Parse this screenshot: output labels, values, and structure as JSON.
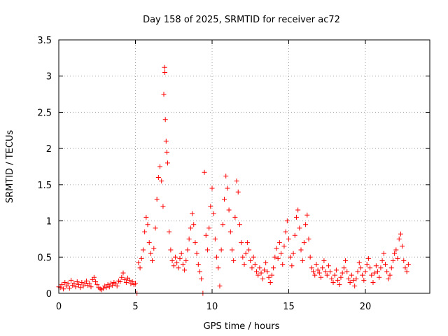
{
  "chart_data": {
    "type": "scatter",
    "title": "Day 158 of 2025, SRMTID for receiver ac72",
    "xlabel": "GPS time / hours",
    "ylabel": "SRMTID / TECUs",
    "xlim": [
      0,
      24.2
    ],
    "ylim": [
      0,
      3.5
    ],
    "xticks": [
      0,
      5,
      10,
      15,
      20
    ],
    "xtick_labels": [
      "0",
      "5",
      "10",
      "15",
      "20"
    ],
    "yticks": [
      0,
      0.5,
      1,
      1.5,
      2,
      2.5,
      3,
      3.5
    ],
    "ytick_labels": [
      "0",
      "0.5",
      "1",
      "1.5",
      "2",
      "2.5",
      "3",
      "3.5"
    ],
    "grid": true,
    "marker": "+",
    "color": "#ff0000",
    "series": [
      {
        "name": "SRMTID",
        "points": [
          [
            0.0,
            0.09
          ],
          [
            0.1,
            0.08
          ],
          [
            0.2,
            0.12
          ],
          [
            0.3,
            0.06
          ],
          [
            0.4,
            0.15
          ],
          [
            0.5,
            0.1
          ],
          [
            0.6,
            0.13
          ],
          [
            0.7,
            0.07
          ],
          [
            0.8,
            0.18
          ],
          [
            0.9,
            0.11
          ],
          [
            1.0,
            0.14
          ],
          [
            1.1,
            0.09
          ],
          [
            1.2,
            0.16
          ],
          [
            1.3,
            0.12
          ],
          [
            1.4,
            0.08
          ],
          [
            1.5,
            0.15
          ],
          [
            1.6,
            0.1
          ],
          [
            1.7,
            0.13
          ],
          [
            1.8,
            0.17
          ],
          [
            1.9,
            0.11
          ],
          [
            2.0,
            0.14
          ],
          [
            2.1,
            0.09
          ],
          [
            2.2,
            0.19
          ],
          [
            2.3,
            0.22
          ],
          [
            2.4,
            0.16
          ],
          [
            2.5,
            0.12
          ],
          [
            2.6,
            0.08
          ],
          [
            2.7,
            0.06
          ],
          [
            2.8,
            0.05
          ],
          [
            2.9,
            0.07
          ],
          [
            3.0,
            0.1
          ],
          [
            3.1,
            0.08
          ],
          [
            3.2,
            0.12
          ],
          [
            3.3,
            0.09
          ],
          [
            3.4,
            0.14
          ],
          [
            3.5,
            0.11
          ],
          [
            3.6,
            0.15
          ],
          [
            3.7,
            0.13
          ],
          [
            3.8,
            0.1
          ],
          [
            3.9,
            0.17
          ],
          [
            4.0,
            0.16
          ],
          [
            4.1,
            0.22
          ],
          [
            4.2,
            0.28
          ],
          [
            4.3,
            0.19
          ],
          [
            4.4,
            0.15
          ],
          [
            4.5,
            0.21
          ],
          [
            4.6,
            0.18
          ],
          [
            4.7,
            0.13
          ],
          [
            4.8,
            0.16
          ],
          [
            4.9,
            0.12
          ],
          [
            5.0,
            0.14
          ],
          [
            5.1,
            0.0
          ],
          [
            5.2,
            0.42
          ],
          [
            5.3,
            0.35
          ],
          [
            5.4,
            0.48
          ],
          [
            5.5,
            0.6
          ],
          [
            5.6,
            0.85
          ],
          [
            5.7,
            1.05
          ],
          [
            5.8,
            0.95
          ],
          [
            5.9,
            0.7
          ],
          [
            6.0,
            0.55
          ],
          [
            6.1,
            0.45
          ],
          [
            6.2,
            0.62
          ],
          [
            6.3,
            0.9
          ],
          [
            6.4,
            1.3
          ],
          [
            6.5,
            1.6
          ],
          [
            6.6,
            1.75
          ],
          [
            6.7,
            1.55
          ],
          [
            6.8,
            1.2
          ],
          [
            6.85,
            2.75
          ],
          [
            6.9,
            3.12
          ],
          [
            6.92,
            3.05
          ],
          [
            6.95,
            2.4
          ],
          [
            7.0,
            2.1
          ],
          [
            7.05,
            1.95
          ],
          [
            7.1,
            1.8
          ],
          [
            7.2,
            0.85
          ],
          [
            7.3,
            0.6
          ],
          [
            7.4,
            0.45
          ],
          [
            7.5,
            0.38
          ],
          [
            7.6,
            0.5
          ],
          [
            7.7,
            0.42
          ],
          [
            7.8,
            0.35
          ],
          [
            7.9,
            0.48
          ],
          [
            8.0,
            0.55
          ],
          [
            8.1,
            0.4
          ],
          [
            8.2,
            0.32
          ],
          [
            8.3,
            0.45
          ],
          [
            8.4,
            0.6
          ],
          [
            8.5,
            0.75
          ],
          [
            8.6,
            0.9
          ],
          [
            8.7,
            1.1
          ],
          [
            8.8,
            0.95
          ],
          [
            8.9,
            0.7
          ],
          [
            9.0,
            0.55
          ],
          [
            9.1,
            0.4
          ],
          [
            9.2,
            0.3
          ],
          [
            9.3,
            0.2
          ],
          [
            9.4,
            0.0
          ],
          [
            9.5,
            1.67
          ],
          [
            9.6,
            0.8
          ],
          [
            9.7,
            0.6
          ],
          [
            9.8,
            0.9
          ],
          [
            9.9,
            1.2
          ],
          [
            10.0,
            1.45
          ],
          [
            10.1,
            1.1
          ],
          [
            10.2,
            0.75
          ],
          [
            10.3,
            0.5
          ],
          [
            10.4,
            0.35
          ],
          [
            10.5,
            0.1
          ],
          [
            10.6,
            0.6
          ],
          [
            10.7,
            0.95
          ],
          [
            10.8,
            1.3
          ],
          [
            10.9,
            1.62
          ],
          [
            11.0,
            1.45
          ],
          [
            11.1,
            1.15
          ],
          [
            11.2,
            0.85
          ],
          [
            11.3,
            0.6
          ],
          [
            11.4,
            0.45
          ],
          [
            11.5,
            1.05
          ],
          [
            11.6,
            1.55
          ],
          [
            11.7,
            1.4
          ],
          [
            11.8,
            0.95
          ],
          [
            11.9,
            0.7
          ],
          [
            12.0,
            0.5
          ],
          [
            12.1,
            0.4
          ],
          [
            12.2,
            0.55
          ],
          [
            12.3,
            0.7
          ],
          [
            12.4,
            0.6
          ],
          [
            12.5,
            0.45
          ],
          [
            12.6,
            0.35
          ],
          [
            12.7,
            0.5
          ],
          [
            12.8,
            0.4
          ],
          [
            12.9,
            0.3
          ],
          [
            13.0,
            0.25
          ],
          [
            13.1,
            0.35
          ],
          [
            13.2,
            0.28
          ],
          [
            13.3,
            0.2
          ],
          [
            13.4,
            0.32
          ],
          [
            13.5,
            0.42
          ],
          [
            13.6,
            0.3
          ],
          [
            13.7,
            0.22
          ],
          [
            13.8,
            0.15
          ],
          [
            13.9,
            0.25
          ],
          [
            14.0,
            0.35
          ],
          [
            14.1,
            0.5
          ],
          [
            14.2,
            0.62
          ],
          [
            14.3,
            0.48
          ],
          [
            14.4,
            0.7
          ],
          [
            14.5,
            0.55
          ],
          [
            14.6,
            0.4
          ],
          [
            14.7,
            0.65
          ],
          [
            14.8,
            0.85
          ],
          [
            14.9,
            1.0
          ],
          [
            15.0,
            0.75
          ],
          [
            15.1,
            0.5
          ],
          [
            15.2,
            0.38
          ],
          [
            15.3,
            0.55
          ],
          [
            15.4,
            0.8
          ],
          [
            15.5,
            1.05
          ],
          [
            15.6,
            1.15
          ],
          [
            15.7,
            0.9
          ],
          [
            15.8,
            0.6
          ],
          [
            15.9,
            0.45
          ],
          [
            16.0,
            0.7
          ],
          [
            16.1,
            0.95
          ],
          [
            16.2,
            1.08
          ],
          [
            16.3,
            0.75
          ],
          [
            16.4,
            0.5
          ],
          [
            16.5,
            0.35
          ],
          [
            16.6,
            0.3
          ],
          [
            16.7,
            0.25
          ],
          [
            16.8,
            0.4
          ],
          [
            16.9,
            0.32
          ],
          [
            17.0,
            0.28
          ],
          [
            17.1,
            0.22
          ],
          [
            17.2,
            0.35
          ],
          [
            17.3,
            0.45
          ],
          [
            17.4,
            0.3
          ],
          [
            17.5,
            0.25
          ],
          [
            17.6,
            0.38
          ],
          [
            17.7,
            0.3
          ],
          [
            17.8,
            0.2
          ],
          [
            17.9,
            0.15
          ],
          [
            18.0,
            0.25
          ],
          [
            18.1,
            0.32
          ],
          [
            18.2,
            0.18
          ],
          [
            18.3,
            0.12
          ],
          [
            18.4,
            0.22
          ],
          [
            18.5,
            0.28
          ],
          [
            18.6,
            0.35
          ],
          [
            18.7,
            0.45
          ],
          [
            18.8,
            0.3
          ],
          [
            18.9,
            0.2
          ],
          [
            19.0,
            0.15
          ],
          [
            19.1,
            0.25
          ],
          [
            19.2,
            0.18
          ],
          [
            19.3,
            0.1
          ],
          [
            19.4,
            0.2
          ],
          [
            19.5,
            0.3
          ],
          [
            19.6,
            0.42
          ],
          [
            19.7,
            0.35
          ],
          [
            19.8,
            0.25
          ],
          [
            19.9,
            0.18
          ],
          [
            20.0,
            0.3
          ],
          [
            20.1,
            0.4
          ],
          [
            20.2,
            0.48
          ],
          [
            20.3,
            0.35
          ],
          [
            20.4,
            0.25
          ],
          [
            20.5,
            0.15
          ],
          [
            20.6,
            0.28
          ],
          [
            20.7,
            0.38
          ],
          [
            20.8,
            0.3
          ],
          [
            20.9,
            0.22
          ],
          [
            21.0,
            0.35
          ],
          [
            21.1,
            0.45
          ],
          [
            21.2,
            0.55
          ],
          [
            21.3,
            0.4
          ],
          [
            21.4,
            0.3
          ],
          [
            21.5,
            0.2
          ],
          [
            21.6,
            0.25
          ],
          [
            21.7,
            0.35
          ],
          [
            21.8,
            0.45
          ],
          [
            21.9,
            0.55
          ],
          [
            22.0,
            0.6
          ],
          [
            22.1,
            0.48
          ],
          [
            22.2,
            0.75
          ],
          [
            22.3,
            0.82
          ],
          [
            22.4,
            0.65
          ],
          [
            22.5,
            0.45
          ],
          [
            22.6,
            0.35
          ],
          [
            22.7,
            0.3
          ],
          [
            22.8,
            0.4
          ]
        ]
      }
    ]
  }
}
